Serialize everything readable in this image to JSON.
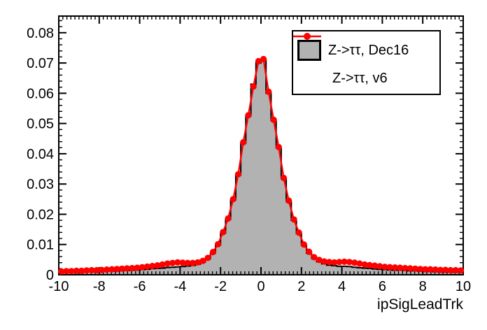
{
  "colors": {
    "background": "#ffffff",
    "frame": "#000000",
    "text": "#000000",
    "histogram_fill": "#b2b2b2",
    "histogram_line": "#000000",
    "graph": "#ff0000",
    "legend_background": "#ffffff"
  },
  "chart_data": {
    "type": "bar",
    "subtype": "filled-step-histogram-with-marker-graph-overlay",
    "title": "",
    "xlabel": "ipSigLeadTrk",
    "ylabel": "",
    "xlim": [
      -10,
      10
    ],
    "ylim": [
      0,
      0.0855
    ],
    "grid": false,
    "tick_style": "inward-mirrored",
    "x_ticks": [
      {
        "v": -10,
        "label": "-10"
      },
      {
        "v": -8,
        "label": "-8"
      },
      {
        "v": -6,
        "label": "-6"
      },
      {
        "v": -4,
        "label": "-4"
      },
      {
        "v": -2,
        "label": "-2"
      },
      {
        "v": 0,
        "label": "0"
      },
      {
        "v": 2,
        "label": "2"
      },
      {
        "v": 4,
        "label": "4"
      },
      {
        "v": 6,
        "label": "6"
      },
      {
        "v": 8,
        "label": "8"
      },
      {
        "v": 10,
        "label": "10"
      }
    ],
    "x_minor_step": 0.2,
    "y_ticks": [
      {
        "v": 0,
        "label": "0"
      },
      {
        "v": 0.01,
        "label": "0.01"
      },
      {
        "v": 0.02,
        "label": "0.02"
      },
      {
        "v": 0.03,
        "label": "0.03"
      },
      {
        "v": 0.04,
        "label": "0.04"
      },
      {
        "v": 0.05,
        "label": "0.05"
      },
      {
        "v": 0.06,
        "label": "0.06"
      },
      {
        "v": 0.07,
        "label": "0.07"
      },
      {
        "v": 0.08,
        "label": "0.08"
      }
    ],
    "y_minor_step": 0.002,
    "bins": {
      "start": -10,
      "width": 0.25,
      "count": 80
    },
    "series": [
      {
        "name": "Z->ττ, Dec16",
        "style": "filled-step-histogram",
        "fill": "#b2b2b2",
        "line": "#000000",
        "values": [
          0.0007,
          0.0007,
          0.0008,
          0.0009,
          0.0009,
          0.001,
          0.001,
          0.0011,
          0.0011,
          0.0012,
          0.0012,
          0.0013,
          0.0014,
          0.0014,
          0.0015,
          0.0016,
          0.0017,
          0.0018,
          0.002,
          0.0021,
          0.0022,
          0.0024,
          0.0025,
          0.0026,
          0.0027,
          0.0029,
          0.0031,
          0.0035,
          0.0042,
          0.0053,
          0.0072,
          0.0098,
          0.0138,
          0.0183,
          0.0248,
          0.033,
          0.0435,
          0.0525,
          0.063,
          0.07,
          0.071,
          0.06,
          0.051,
          0.042,
          0.0318,
          0.0242,
          0.018,
          0.0136,
          0.0097,
          0.0071,
          0.0054,
          0.0043,
          0.0036,
          0.0032,
          0.003,
          0.0028,
          0.0028,
          0.0027,
          0.0025,
          0.0023,
          0.0022,
          0.0021,
          0.0019,
          0.0018,
          0.0017,
          0.0016,
          0.0015,
          0.0015,
          0.0014,
          0.0013,
          0.0013,
          0.0012,
          0.0011,
          0.0011,
          0.001,
          0.001,
          0.0009,
          0.0009,
          0.0008,
          0.0008
        ]
      },
      {
        "name": "Z->ττ, v6",
        "style": "line-with-circle-markers",
        "color": "#ff0000",
        "marker_radius": 4.6,
        "values": [
          0.0011,
          0.0012,
          0.0012,
          0.0013,
          0.0013,
          0.0014,
          0.0015,
          0.0015,
          0.0016,
          0.0017,
          0.0018,
          0.0019,
          0.002,
          0.0021,
          0.0022,
          0.0023,
          0.0025,
          0.0027,
          0.0029,
          0.0031,
          0.0034,
          0.0037,
          0.0039,
          0.0041,
          0.004,
          0.0039,
          0.0039,
          0.0041,
          0.0046,
          0.0056,
          0.0075,
          0.0101,
          0.0141,
          0.0186,
          0.025,
          0.0332,
          0.0438,
          0.0527,
          0.0622,
          0.0706,
          0.0713,
          0.0605,
          0.0512,
          0.0422,
          0.032,
          0.0245,
          0.0183,
          0.0139,
          0.01,
          0.0076,
          0.0058,
          0.0049,
          0.0044,
          0.0042,
          0.0041,
          0.0042,
          0.0043,
          0.0042,
          0.004,
          0.0037,
          0.0034,
          0.0032,
          0.003,
          0.0028,
          0.0026,
          0.0025,
          0.0024,
          0.0023,
          0.0022,
          0.0021,
          0.002,
          0.0019,
          0.0018,
          0.0018,
          0.0017,
          0.0016,
          0.0016,
          0.0015,
          0.0015,
          0.0014
        ]
      }
    ],
    "legend": {
      "position": "top-right",
      "entries": [
        {
          "label": "Z->ττ, Dec16",
          "marker": "filled-box"
        },
        {
          "label": "Z->ττ, v6",
          "marker": "line-circle"
        }
      ]
    }
  }
}
